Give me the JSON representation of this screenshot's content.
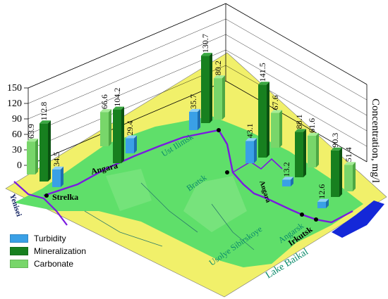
{
  "chart_data": {
    "type": "bar",
    "ylabel": "Concentration, mg/l",
    "ylim": [
      0,
      150
    ],
    "yticks": [
      0,
      30,
      60,
      90,
      120,
      150
    ],
    "series": [
      {
        "name": "Turbidity",
        "color": "#3aa0e6"
      },
      {
        "name": "Mineralization",
        "color": "#17801f"
      },
      {
        "name": "Carbonate",
        "color": "#78d66a"
      }
    ],
    "stations": [
      {
        "name": "Strelka",
        "turbidity": 34.5,
        "mineralization": 112.8,
        "carbonate": 63.9
      },
      {
        "name": "Angara",
        "turbidity": 29.4,
        "mineralization": 104.2,
        "carbonate": 66.6
      },
      {
        "name": "Ust Ilimsk",
        "turbidity": 35.7,
        "mineralization": 130.7,
        "carbonate": 80.2
      },
      {
        "name": "Bratsk",
        "turbidity": 43.1,
        "mineralization": 141.5,
        "carbonate": 67.6
      },
      {
        "name": "Angarsk",
        "turbidity": 13.2,
        "mineralization": 88.1,
        "carbonate": 61.6
      },
      {
        "name": "Irkutsk",
        "turbidity": 12.6,
        "mineralization": 90.3,
        "carbonate": 51.4
      }
    ]
  },
  "map": {
    "place_labels": [
      "Yenisei",
      "Strelka",
      "Angara",
      "Ust Ilimsk",
      "Bratsk",
      "Angara",
      "Usolye Sibirskoye",
      "Angarsk",
      "Irkutsk",
      "Lake Baikal"
    ],
    "colors": {
      "land": "#5fdf6a",
      "water": "#f2f26a",
      "river": "#7a1ae0",
      "lake": "#1428d8"
    }
  }
}
